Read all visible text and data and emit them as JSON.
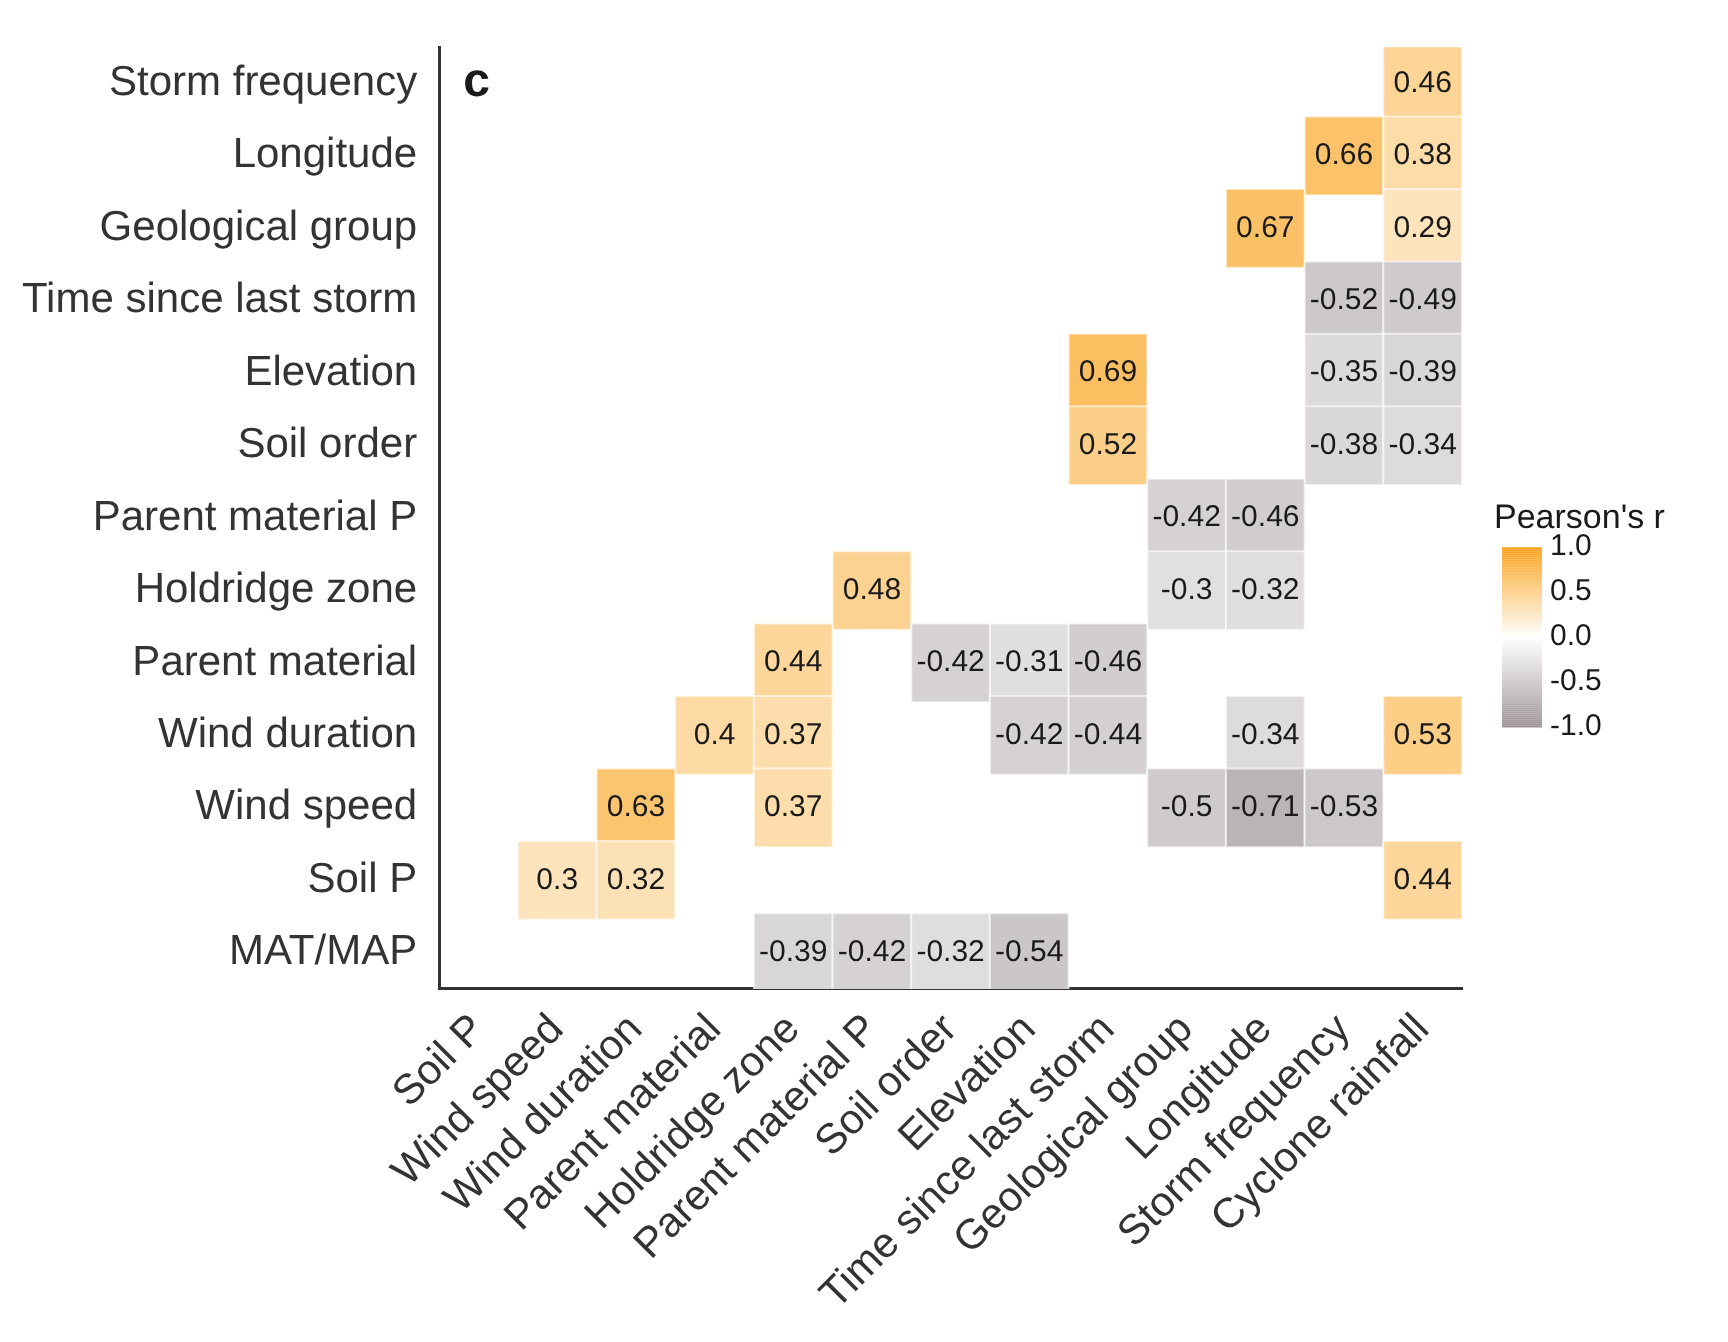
{
  "chart_data": {
    "type": "heatmap",
    "title": "c",
    "clabel": "Pearson's r",
    "categories": [
      "Soil P",
      "Wind speed",
      "Wind duration",
      "Parent material",
      "Holdridge zone",
      "Parent material P",
      "Soil order",
      "Elevation",
      "Time since last storm",
      "Geological group",
      "Longitude",
      "Storm frequency",
      "Cyclone rainfall"
    ],
    "y_categories": [
      "Storm frequency",
      "Longitude",
      "Geological group",
      "Time since last storm",
      "Elevation",
      "Soil order",
      "Parent material P",
      "Holdridge zone",
      "Parent material",
      "Wind duration",
      "Wind speed",
      "Soil P",
      "MAT/MAP"
    ],
    "cells": [
      [
        null,
        null,
        null,
        null,
        null,
        null,
        null,
        null,
        null,
        null,
        null,
        null,
        0.46
      ],
      [
        null,
        null,
        null,
        null,
        null,
        null,
        null,
        null,
        null,
        null,
        null,
        0.66,
        0.38
      ],
      [
        null,
        null,
        null,
        null,
        null,
        null,
        null,
        null,
        null,
        null,
        0.67,
        null,
        0.29
      ],
      [
        null,
        null,
        null,
        null,
        null,
        null,
        null,
        null,
        null,
        null,
        null,
        -0.52,
        -0.49
      ],
      [
        null,
        null,
        null,
        null,
        null,
        null,
        null,
        null,
        0.69,
        null,
        null,
        -0.35,
        -0.39
      ],
      [
        null,
        null,
        null,
        null,
        null,
        null,
        null,
        null,
        0.52,
        null,
        null,
        -0.38,
        -0.34
      ],
      [
        null,
        null,
        null,
        null,
        null,
        null,
        null,
        null,
        null,
        -0.42,
        -0.46,
        null,
        null
      ],
      [
        null,
        null,
        null,
        null,
        null,
        0.48,
        null,
        null,
        null,
        -0.3,
        -0.32,
        null,
        null
      ],
      [
        null,
        null,
        null,
        null,
        0.44,
        null,
        -0.42,
        -0.31,
        -0.46,
        null,
        null,
        null,
        null
      ],
      [
        null,
        null,
        null,
        0.4,
        0.37,
        null,
        null,
        -0.42,
        -0.44,
        null,
        -0.34,
        null,
        0.53
      ],
      [
        null,
        null,
        0.63,
        null,
        0.37,
        null,
        null,
        null,
        null,
        -0.5,
        -0.71,
        -0.53,
        null
      ],
      [
        null,
        0.3,
        0.32,
        null,
        null,
        null,
        null,
        null,
        null,
        null,
        null,
        null,
        0.44
      ],
      [
        null,
        null,
        null,
        null,
        -0.39,
        -0.42,
        -0.32,
        -0.54,
        null,
        null,
        null,
        null,
        null
      ]
    ],
    "data_labels": true,
    "clim": [
      -1,
      1
    ],
    "cticks": [
      {
        "value": 1,
        "label": "1.0"
      },
      {
        "value": 0.5,
        "label": "0.5"
      },
      {
        "value": 0,
        "label": "0.0"
      },
      {
        "value": -0.5,
        "label": "-0.5"
      },
      {
        "value": -1,
        "label": "-1.0"
      }
    ]
  }
}
